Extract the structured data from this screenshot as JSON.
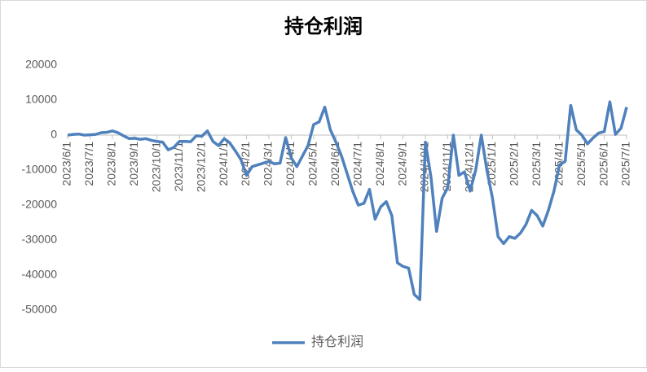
{
  "chart_data": {
    "type": "line",
    "title": "持仓利润",
    "categories": [
      "2023/6/1",
      null,
      null,
      null,
      "2023/7/1",
      null,
      null,
      null,
      "2023/8/1",
      null,
      null,
      null,
      "2023/9/1",
      null,
      null,
      null,
      "2023/10/1",
      null,
      null,
      null,
      "2023/11/1",
      null,
      null,
      null,
      "2023/12/1",
      null,
      null,
      null,
      "2024/1/1",
      null,
      null,
      null,
      "2024/2/1",
      null,
      null,
      null,
      "2024/3/1",
      null,
      null,
      null,
      "2024/4/1",
      null,
      null,
      null,
      "2024/5/1",
      null,
      null,
      null,
      "2024/6/1",
      null,
      null,
      null,
      "2024/7/1",
      null,
      null,
      null,
      "2024/8/1",
      null,
      null,
      null,
      "2024/9/1",
      null,
      null,
      null,
      "2024/10/1",
      null,
      null,
      null,
      "2024/11/1",
      null,
      null,
      null,
      "2024/12/1",
      null,
      null,
      null,
      "2025/1/1",
      null,
      null,
      null,
      "2025/2/1",
      null,
      null,
      null,
      "2025/3/1",
      null,
      null,
      null,
      "2025/4/1",
      null,
      null,
      null,
      "2025/5/1",
      null,
      null,
      null,
      "2025/6/1",
      null,
      null,
      null,
      "2025/7/1"
    ],
    "series": [
      {
        "name": "持仓利润",
        "color": "#4f81bd",
        "values": [
          0,
          200,
          300,
          0,
          100,
          200,
          700,
          800,
          1200,
          700,
          -200,
          -1000,
          -900,
          -1200,
          -1000,
          -1500,
          -1800,
          -2000,
          -4200,
          -3500,
          -1800,
          -1800,
          -1900,
          -200,
          -300,
          1200,
          -1800,
          -3000,
          -1000,
          -2200,
          -4500,
          -7000,
          -11500,
          -9000,
          -8500,
          -8000,
          -7500,
          -8200,
          -8000,
          -700,
          -6500,
          -9000,
          -6000,
          -3000,
          3000,
          3800,
          8000,
          1500,
          -2000,
          -6000,
          -11000,
          -16000,
          -20000,
          -19500,
          -15500,
          -24000,
          -20500,
          -19000,
          -23000,
          -36500,
          -37500,
          -38000,
          -45500,
          -47000,
          -2000,
          -12000,
          -27500,
          -18000,
          -15000,
          0,
          -11500,
          -10500,
          -16000,
          -10000,
          0,
          -10000,
          -18000,
          -29000,
          -31000,
          -29000,
          -29500,
          -28000,
          -25500,
          -21500,
          -23000,
          -26000,
          -21500,
          -16000,
          -8500,
          -7500,
          8500,
          1500,
          0,
          -2500,
          -800,
          600,
          1000,
          9500,
          200,
          2000,
          8000
        ]
      }
    ],
    "ylim": [
      -50000,
      20000
    ],
    "yticks": [
      -50000,
      -40000,
      -30000,
      -20000,
      -10000,
      0,
      10000,
      20000
    ],
    "grid": false,
    "legend": "bottom"
  }
}
